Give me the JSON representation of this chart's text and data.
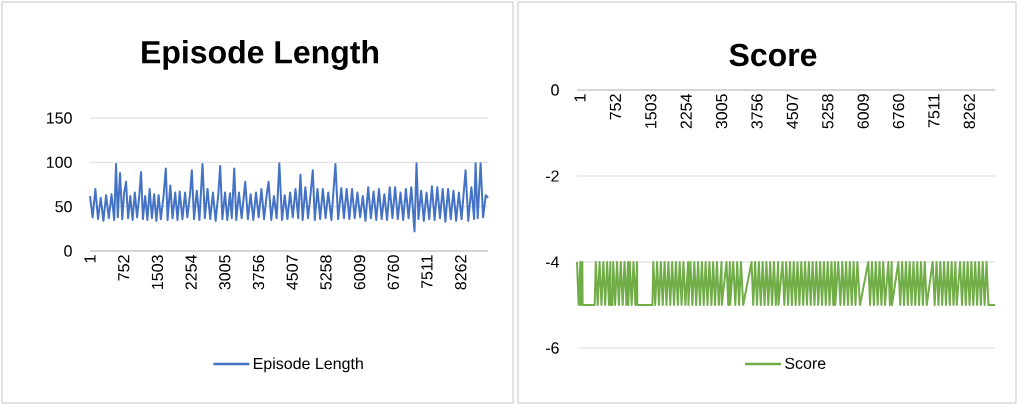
{
  "chart_data": [
    {
      "type": "line",
      "title": "Episode Length",
      "xlim": [
        1,
        8870
      ],
      "ylim": [
        0,
        150
      ],
      "xticks": [
        1,
        752,
        1503,
        2254,
        3005,
        3756,
        4507,
        5258,
        6009,
        6760,
        7511,
        8262
      ],
      "yticks": [
        0,
        50,
        100,
        150
      ],
      "grid": "y",
      "legend": "bottom",
      "x": [
        1,
        60,
        120,
        180,
        240,
        300,
        360,
        420,
        480,
        540,
        581,
        620,
        670,
        720,
        760,
        804,
        850,
        900,
        950,
        1000,
        1050,
        1100,
        1139,
        1180,
        1230,
        1280,
        1330,
        1380,
        1430,
        1480,
        1530,
        1580,
        1640,
        1690,
        1730,
        1790,
        1840,
        1900,
        1950,
        2000,
        2060,
        2120,
        2170,
        2230,
        2270,
        2320,
        2380,
        2440,
        2508,
        2560,
        2620,
        2680,
        2740,
        2800,
        2860,
        2902,
        2950,
        3010,
        3060,
        3120,
        3160,
        3215,
        3260,
        3320,
        3380,
        3460,
        3520,
        3580,
        3640,
        3700,
        3760,
        3820,
        3880,
        3940,
        3980,
        4040,
        4100,
        4160,
        4220,
        4280,
        4340,
        4400,
        4460,
        4520,
        4580,
        4640,
        4690,
        4740,
        4800,
        4860,
        4920,
        4965,
        5010,
        5070,
        5130,
        5190,
        5250,
        5310,
        5380,
        5470,
        5530,
        5600,
        5660,
        5720,
        5780,
        5840,
        5900,
        5960,
        6020,
        6080,
        6140,
        6200,
        6260,
        6320,
        6380,
        6440,
        6500,
        6560,
        6620,
        6680,
        6740,
        6800,
        6860,
        6920,
        6980,
        7040,
        7100,
        7160,
        7232,
        7277,
        7320,
        7380,
        7440,
        7500,
        7560,
        7620,
        7680,
        7740,
        7800,
        7860,
        7920,
        7980,
        8040,
        8100,
        8160,
        8220,
        8280,
        8370,
        8430,
        8500,
        8560,
        8593,
        8640,
        8705,
        8760,
        8820,
        8870
      ],
      "series": [
        {
          "name": "Episode Length",
          "color": "#4472c4",
          "values": [
            62,
            38,
            70,
            36,
            60,
            34,
            63,
            37,
            64,
            35,
            98,
            38,
            88,
            36,
            65,
            78,
            37,
            62,
            35,
            66,
            38,
            63,
            89,
            36,
            62,
            35,
            70,
            37,
            64,
            34,
            63,
            36,
            62,
            93,
            35,
            74,
            37,
            66,
            35,
            67,
            36,
            66,
            38,
            64,
            91,
            36,
            68,
            35,
            98,
            37,
            70,
            36,
            66,
            34,
            64,
            96,
            36,
            66,
            35,
            65,
            37,
            93,
            35,
            66,
            37,
            78,
            36,
            64,
            35,
            66,
            38,
            70,
            36,
            64,
            78,
            35,
            62,
            37,
            99,
            35,
            63,
            36,
            66,
            38,
            70,
            37,
            86,
            35,
            72,
            37,
            66,
            91,
            35,
            70,
            36,
            70,
            37,
            66,
            35,
            98,
            36,
            71,
            37,
            70,
            36,
            70,
            37,
            66,
            38,
            62,
            34,
            72,
            37,
            67,
            35,
            70,
            36,
            64,
            35,
            72,
            37,
            72,
            36,
            66,
            35,
            70,
            37,
            72,
            22,
            99,
            36,
            68,
            34,
            66,
            36,
            73,
            35,
            72,
            37,
            70,
            33,
            70,
            36,
            68,
            34,
            66,
            36,
            91,
            34,
            72,
            36,
            99,
            37,
            99,
            38,
            63,
            60
          ]
        }
      ]
    },
    {
      "type": "line",
      "title": "Score",
      "xlim": [
        1,
        8870
      ],
      "ylim": [
        -6,
        0
      ],
      "xticks": [
        1,
        752,
        1503,
        2254,
        3005,
        3756,
        4507,
        5258,
        6009,
        6760,
        7511,
        8262
      ],
      "yticks": [
        -6,
        -4,
        -2,
        0
      ],
      "grid": "y",
      "legend": "bottom",
      "x": [
        1,
        36,
        72,
        80,
        114,
        120,
        376,
        400,
        440,
        480,
        520,
        560,
        600,
        640,
        680,
        709,
        715,
        751,
        770,
        810,
        850,
        890,
        930,
        970,
        1010,
        1050,
        1084,
        1090,
        1120,
        1160,
        1200,
        1240,
        1275,
        1280,
        1601,
        1620,
        1660,
        1700,
        1740,
        1780,
        1820,
        1860,
        1900,
        1940,
        1980,
        2020,
        2060,
        2100,
        2140,
        2180,
        2220,
        2260,
        2300,
        2359,
        2365,
        2408,
        2450,
        2490,
        2530,
        2570,
        2610,
        2650,
        2690,
        2730,
        2770,
        2810,
        2854,
        2890,
        2930,
        2970,
        3010,
        3067,
        3073,
        3173,
        3210,
        3244,
        3250,
        3315,
        3360,
        3400,
        3440,
        3480,
        3527,
        3704,
        3740,
        3780,
        3820,
        3860,
        3900,
        3940,
        3980,
        4020,
        4060,
        4100,
        4140,
        4180,
        4220,
        4270,
        4276,
        4362,
        4400,
        4440,
        4480,
        4520,
        4560,
        4600,
        4640,
        4680,
        4720,
        4760,
        4800,
        4840,
        4880,
        4920,
        4960,
        5000,
        5040,
        5080,
        5120,
        5160,
        5200,
        5240,
        5280,
        5320,
        5360,
        5400,
        5440,
        5474,
        5480,
        5545,
        5590,
        5630,
        5670,
        5710,
        5750,
        5790,
        5830,
        5870,
        5910,
        5950,
        6005,
        6182,
        6220,
        6260,
        6300,
        6340,
        6380,
        6420,
        6460,
        6500,
        6536,
        6607,
        6640,
        6678,
        6684,
        6819,
        6860,
        6900,
        6940,
        6980,
        7020,
        7060,
        7100,
        7140,
        7180,
        7220,
        7260,
        7300,
        7340,
        7380,
        7421,
        7548,
        7590,
        7630,
        7670,
        7710,
        7750,
        7790,
        7830,
        7870,
        7910,
        7950,
        7990,
        8030,
        8058,
        8129,
        8170,
        8210,
        8250,
        8290,
        8330,
        8370,
        8410,
        8450,
        8490,
        8530,
        8570,
        8610,
        8650,
        8690,
        8731,
        8870
      ],
      "series": [
        {
          "name": "Score",
          "color": "#70ad47",
          "values": [
            -4,
            -5,
            -4,
            -5,
            -4,
            -5,
            -5,
            -4,
            -5,
            -4,
            -5,
            -4,
            -5,
            -4,
            -5,
            -4,
            -5,
            -5,
            -4,
            -5,
            -4,
            -5,
            -4,
            -5,
            -4,
            -5,
            -4,
            -5,
            -4,
            -5,
            -4,
            -5,
            -4,
            -5,
            -5,
            -4,
            -5,
            -4,
            -5,
            -4,
            -5,
            -4,
            -5,
            -4,
            -5,
            -4,
            -5,
            -4,
            -5,
            -4,
            -5,
            -4,
            -5,
            -4,
            -5,
            -4,
            -5,
            -4,
            -5,
            -4,
            -5,
            -4,
            -5,
            -4,
            -5,
            -4,
            -5,
            -4,
            -5,
            -4,
            -5,
            -4,
            -5,
            -4,
            -5,
            -4,
            -5,
            -4,
            -5,
            -4,
            -5,
            -4,
            -5,
            -4,
            -5,
            -4,
            -5,
            -4,
            -5,
            -4,
            -5,
            -4,
            -5,
            -4,
            -5,
            -4,
            -5,
            -4,
            -5,
            -4,
            -5,
            -4,
            -5,
            -4,
            -5,
            -4,
            -5,
            -4,
            -5,
            -4,
            -5,
            -4,
            -5,
            -4,
            -5,
            -4,
            -5,
            -4,
            -5,
            -4,
            -5,
            -4,
            -5,
            -4,
            -5,
            -4,
            -5,
            -4,
            -5,
            -4,
            -5,
            -4,
            -5,
            -4,
            -5,
            -4,
            -5,
            -4,
            -5,
            -4,
            -5,
            -4,
            -5,
            -4,
            -5,
            -4,
            -5,
            -4,
            -5,
            -4,
            -5,
            -4,
            -5,
            -4,
            -5,
            -4,
            -5,
            -4,
            -5,
            -4,
            -5,
            -4,
            -5,
            -4,
            -5,
            -4,
            -5,
            -4,
            -5,
            -4,
            -5,
            -4,
            -5,
            -4,
            -5,
            -4,
            -5,
            -4,
            -5,
            -4,
            -5,
            -4,
            -5,
            -4,
            -5,
            -4,
            -5,
            -4,
            -5,
            -4,
            -5,
            -4,
            -5,
            -4,
            -5,
            -4,
            -5,
            -4,
            -5,
            -4,
            -5,
            -5
          ]
        }
      ]
    }
  ]
}
